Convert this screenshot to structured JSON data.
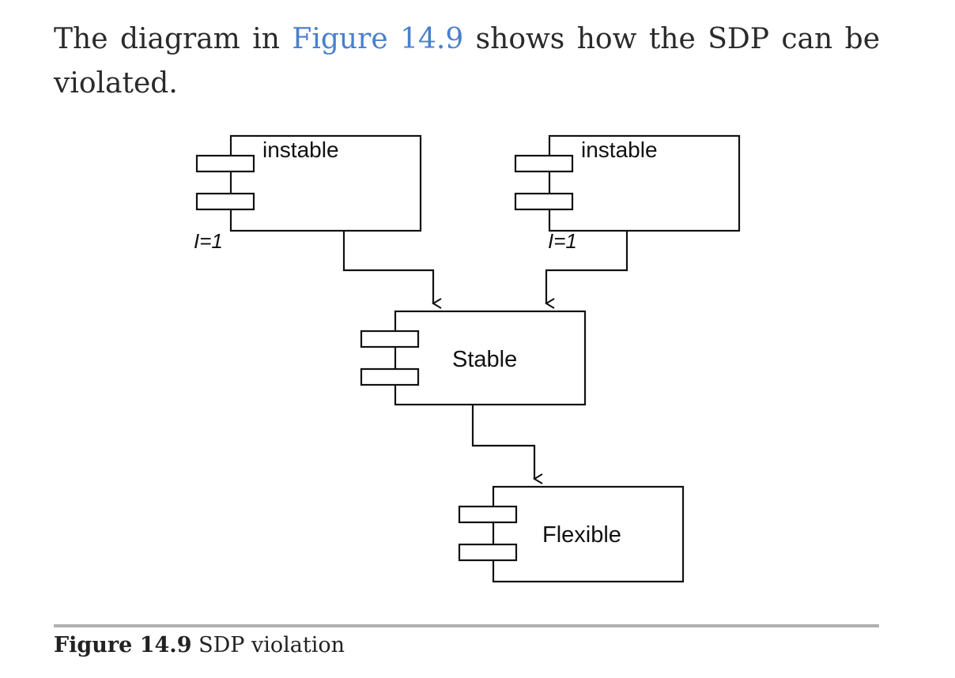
{
  "paragraph": {
    "before": "The diagram in ",
    "link": "Figure 14.9",
    "after": " shows how the SDP can be violated."
  },
  "diagram": {
    "nodes": [
      {
        "id": "instable-left",
        "label": "instable",
        "metric": "I=1"
      },
      {
        "id": "instable-right",
        "label": "instable",
        "metric": "I=1"
      },
      {
        "id": "stable",
        "label": "Stable"
      },
      {
        "id": "flexible",
        "label": "Flexible"
      }
    ],
    "edges": [
      {
        "from": "instable-left",
        "to": "stable"
      },
      {
        "from": "instable-right",
        "to": "stable"
      },
      {
        "from": "stable",
        "to": "flexible"
      }
    ]
  },
  "caption": {
    "number": "Figure 14.9",
    "text": " SDP violation"
  }
}
